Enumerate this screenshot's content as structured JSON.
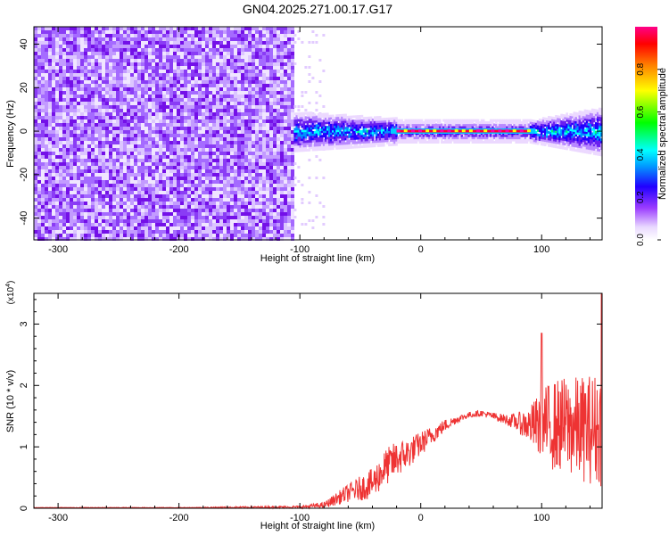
{
  "title": "GN04.2025.271.00.17.G17",
  "colors": {
    "snr_line": "#ee3333",
    "spectro_low": "#e8d8ff",
    "spectro_mid": "#7a1fe6",
    "axis": "#000000"
  },
  "chart_data": [
    {
      "type": "heatmap",
      "title": "GN04.2025.271.00.17.G17",
      "xlabel": "Height of straight line (km)",
      "ylabel": "Frequency (Hz)",
      "xlim": [
        -320,
        150
      ],
      "ylim": [
        -50,
        48
      ],
      "xticks": [
        -300,
        -200,
        -100,
        0,
        100
      ],
      "yticks": [
        -40,
        -20,
        0,
        20,
        40
      ],
      "colorbar": {
        "label": "Normalized spectral amplitude",
        "range": [
          0.0,
          1.0
        ],
        "ticks": [
          "0.0",
          "0.2",
          "0.4",
          "0.6",
          "0.8"
        ],
        "colormap": "rainbow (white-purple-blue-cyan-green-yellow-red-magenta)"
      },
      "regions": [
        {
          "x": [
            -320,
            -105
          ],
          "freq": [
            -50,
            48
          ],
          "amplitude": "0.0-0.2 broadband noise"
        },
        {
          "x": [
            -105,
            -80
          ],
          "freq": [
            -50,
            48
          ],
          "amplitude": "sparse 0.0-0.1"
        },
        {
          "x": [
            -105,
            -20
          ],
          "freq": [
            -8,
            8
          ],
          "amplitude": "0.2-0.5 band"
        },
        {
          "x": [
            -20,
            90
          ],
          "freq": [
            -1,
            1
          ],
          "amplitude": "0.9-1.0 narrow line at 0 Hz"
        },
        {
          "x": [
            90,
            150
          ],
          "freq": [
            -6,
            10
          ],
          "amplitude": "0.2-0.5 band"
        }
      ]
    },
    {
      "type": "line",
      "xlabel": "Height of straight line (km)",
      "ylabel": "SNR (10 * v/v)",
      "multiplier_label": "(x10",
      "multiplier_exp": "4",
      "xlim": [
        -320,
        150
      ],
      "ylim": [
        0,
        3.5
      ],
      "xticks": [
        -300,
        -200,
        -100,
        0,
        100
      ],
      "yticks": [
        0,
        1,
        2,
        3
      ],
      "series_envelope": {
        "x": [
          -320,
          -200,
          -100,
          -80,
          -60,
          -40,
          -30,
          -20,
          -10,
          0,
          10,
          20,
          30,
          40,
          50,
          60,
          70,
          80,
          90,
          100,
          110,
          120,
          130,
          140,
          150
        ],
        "mean": [
          0.01,
          0.01,
          0.02,
          0.05,
          0.25,
          0.4,
          0.65,
          0.8,
          0.9,
          1.05,
          1.2,
          1.35,
          1.45,
          1.52,
          1.55,
          1.5,
          1.45,
          1.4,
          1.35,
          1.35,
          1.35,
          1.35,
          1.3,
          1.3,
          1.3
        ],
        "spread": [
          0.005,
          0.005,
          0.02,
          0.05,
          0.15,
          0.25,
          0.3,
          0.3,
          0.25,
          0.2,
          0.15,
          0.1,
          0.06,
          0.05,
          0.05,
          0.06,
          0.08,
          0.15,
          0.3,
          0.6,
          0.75,
          0.8,
          0.85,
          0.9,
          0.95
        ]
      },
      "max_spike": 3.75
    }
  ]
}
